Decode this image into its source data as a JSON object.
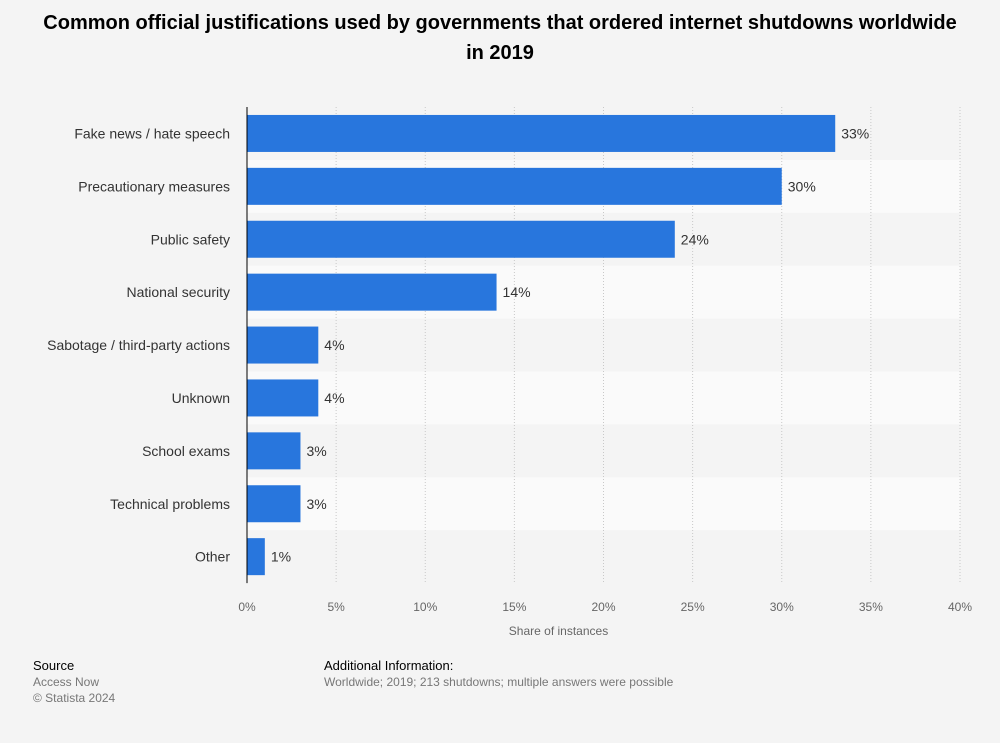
{
  "title": "Common official justifications used by governments that ordered internet shutdowns worldwide in 2019",
  "chart_data": {
    "type": "bar",
    "orientation": "horizontal",
    "categories": [
      "Fake news / hate speech",
      "Precautionary measures",
      "Public safety",
      "National security",
      "Sabotage / third-party actions",
      "Unknown",
      "School exams",
      "Technical problems",
      "Other"
    ],
    "values": [
      33,
      30,
      24,
      14,
      4,
      4,
      3,
      3,
      1
    ],
    "value_labels": [
      "33%",
      "30%",
      "24%",
      "14%",
      "4%",
      "4%",
      "3%",
      "3%",
      "1%"
    ],
    "x_ticks": [
      "0%",
      "5%",
      "10%",
      "15%",
      "20%",
      "25%",
      "30%",
      "35%",
      "40%"
    ],
    "xlabel": "Share of instances",
    "xlim": [
      0,
      40
    ],
    "bar_color": "#2876dd",
    "grid": true
  },
  "footer": {
    "source_heading": "Source",
    "source_name": "Access Now",
    "copyright": "© Statista 2024",
    "info_heading": "Additional Information:",
    "info_text": "Worldwide; 2019; 213 shutdowns; multiple answers were possible"
  }
}
